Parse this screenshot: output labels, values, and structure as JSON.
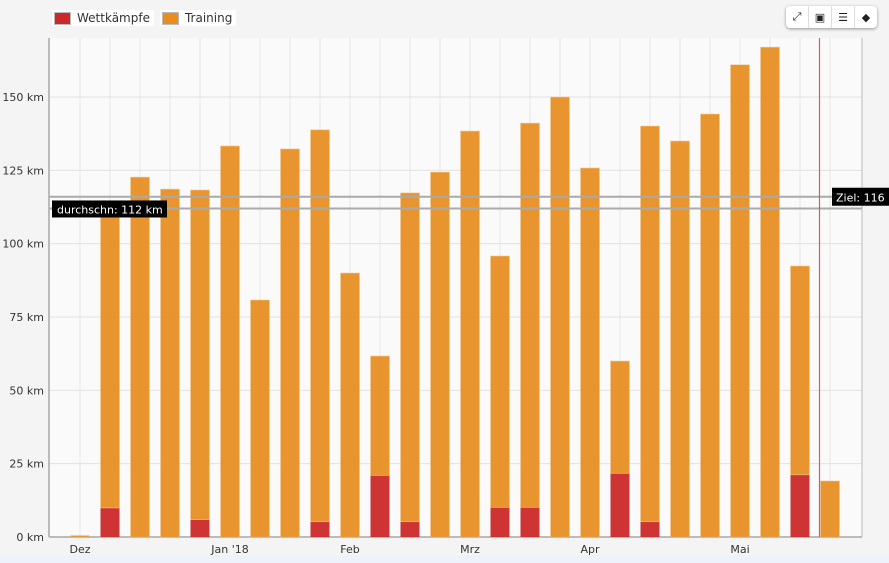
{
  "legend": [
    {
      "label": "Wettkämpfe",
      "color": "#cc2929"
    },
    {
      "label": "Training",
      "color": "#e88d1e"
    }
  ],
  "toolbar": [
    {
      "name": "fullscreen-icon",
      "glyph": "⤢"
    },
    {
      "name": "save-icon",
      "glyph": "💾"
    },
    {
      "name": "list-icon",
      "glyph": "☰"
    },
    {
      "name": "tag-icon",
      "glyph": "🏷"
    }
  ],
  "chart_data": {
    "type": "bar",
    "stacked": true,
    "unit": "km",
    "ylim": [
      0,
      170
    ],
    "yticks": [
      0,
      25,
      50,
      75,
      100,
      125,
      150
    ],
    "ytick_labels": [
      "0 km",
      "25 km",
      "50 km",
      "75 km",
      "100 km",
      "125 km",
      "150 km"
    ],
    "xtick_labels": [
      {
        "label": "Dez",
        "index": 0
      },
      {
        "label": "Jan '18",
        "index": 5
      },
      {
        "label": "Feb",
        "index": 9
      },
      {
        "label": "Mrz",
        "index": 13
      },
      {
        "label": "Apr",
        "index": 17
      },
      {
        "label": "Mai",
        "index": 22
      }
    ],
    "series": [
      {
        "name": "Wettkämpfe",
        "color": "#cc2929",
        "values": [
          0,
          9.9,
          0,
          0,
          5.9,
          0,
          0,
          0,
          5.2,
          0,
          21.0,
          5.2,
          0,
          0,
          10.1,
          10.1,
          0,
          0,
          21.7,
          5.2,
          0,
          0,
          0,
          0,
          21.2,
          0
        ]
      },
      {
        "name": "Training",
        "color": "#e88d1e",
        "values": [
          0.5,
          100.9,
          122.7,
          118.6,
          112.4,
          133.3,
          80.8,
          132.3,
          133.6,
          90.0,
          40.7,
          112.1,
          124.4,
          138.4,
          85.7,
          131.0,
          150.0,
          125.8,
          38.3,
          134.9,
          135.0,
          144.2,
          161.0,
          167.0,
          71.2,
          19.1
        ]
      }
    ],
    "reference_lines": [
      {
        "label": "durchschn: 112 km",
        "value": 112,
        "color": "#999999"
      },
      {
        "label": "Ziel: 116",
        "value": 116,
        "color": "#999999"
      }
    ],
    "current_marker_index": 24.65
  }
}
